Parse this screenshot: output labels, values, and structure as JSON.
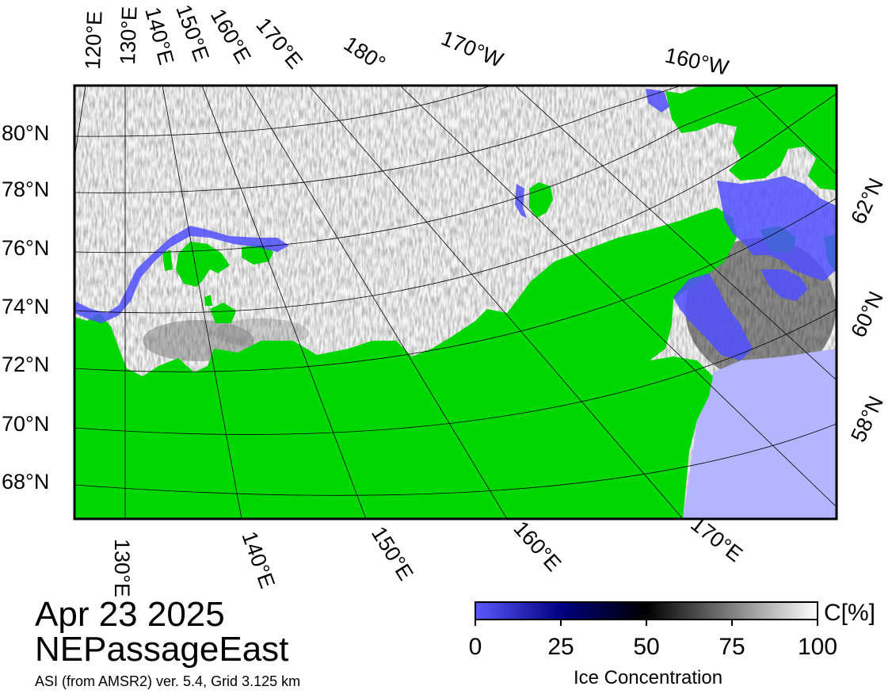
{
  "map": {
    "date": "Apr 23 2025",
    "region": "NEPassageEast",
    "source": "ASI (from AMSR2) ver. 5.4,  Grid 3.125 km",
    "colors": {
      "land": "#00d700",
      "open_water": "#b4b4ff",
      "low_ice": "#5050ff",
      "border": "#000000"
    },
    "lat_labels_left": [
      "80°N",
      "78°N",
      "76°N",
      "74°N",
      "72°N",
      "70°N",
      "68°N"
    ],
    "lat_labels_right": [
      "62°N",
      "60°N",
      "58°N"
    ],
    "lon_labels_top": [
      "120°E",
      "130°E",
      "140°E",
      "150°E",
      "160°E",
      "170°E",
      "180°",
      "170°W",
      "160°W"
    ],
    "lon_labels_bottom": [
      "130°E",
      "140°E",
      "150°E",
      "160°E",
      "170°E"
    ]
  },
  "colorbar": {
    "ticks": [
      "0",
      "25",
      "50",
      "75",
      "100"
    ],
    "unit": "C[%]",
    "title": "Ice Concentration",
    "stops": [
      "#5a5aff",
      "#000080",
      "#000000",
      "#808080",
      "#ffffff"
    ]
  }
}
